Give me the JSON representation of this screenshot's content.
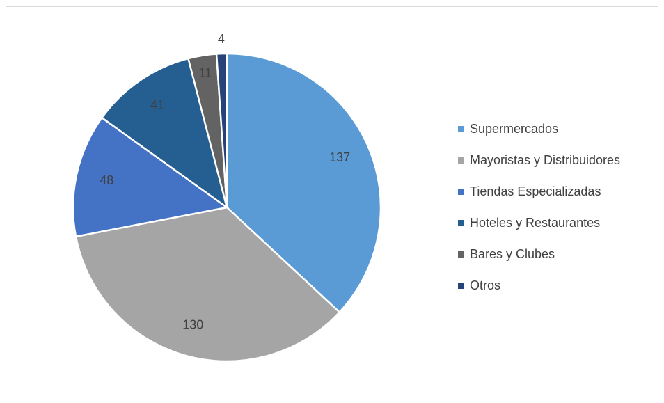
{
  "chart_data": {
    "type": "pie",
    "categories": [
      "Supermercados",
      "Mayoristas y Distribuidores",
      "Tiendas Especializadas",
      "Hoteles y Restaurantes",
      "Bares y Clubes",
      "Otros"
    ],
    "values": [
      137,
      130,
      48,
      41,
      11,
      4
    ],
    "colors": [
      "#5b9bd5",
      "#a5a5a5",
      "#4472c4",
      "#255e91",
      "#636363",
      "#264478"
    ],
    "legend": "right"
  }
}
